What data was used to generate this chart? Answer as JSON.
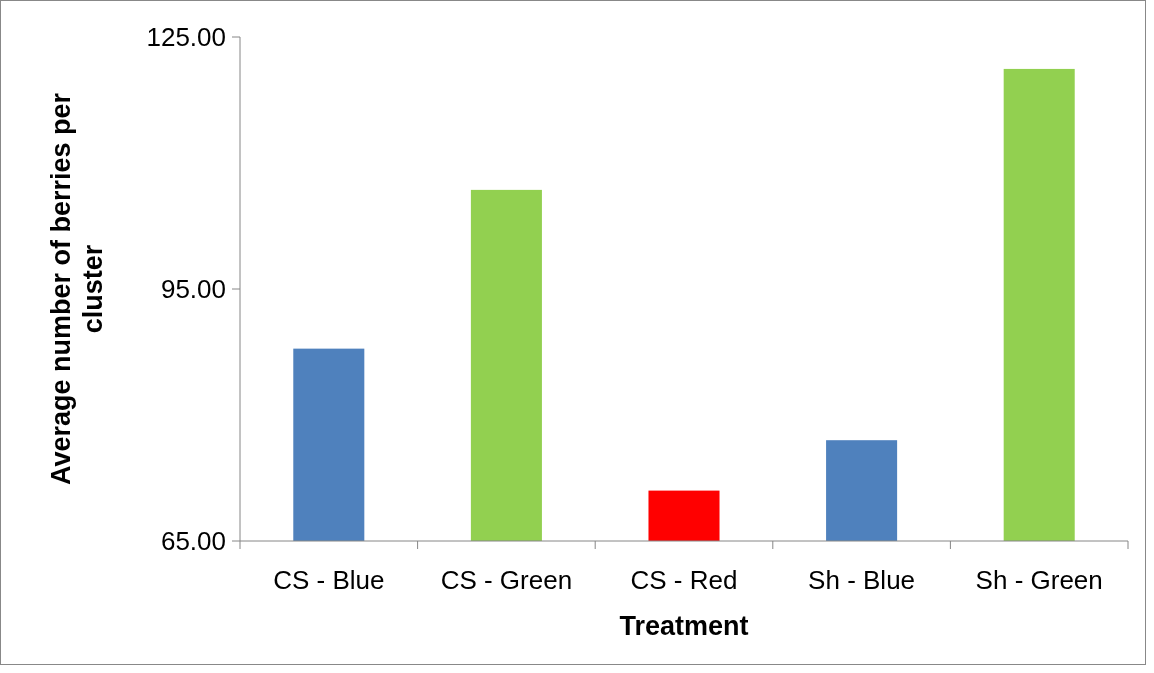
{
  "chart_data": {
    "type": "bar",
    "xlabel": "Treatment",
    "ylabel": "Average number of berries per cluster",
    "categories": [
      "CS - Blue",
      "CS - Green",
      "CS - Red",
      "Sh - Blue",
      "Sh - Green"
    ],
    "values": [
      87.9,
      106.8,
      71.0,
      77.0,
      121.2
    ],
    "colors": [
      "#4f81bd",
      "#92d050",
      "#ff0000",
      "#4f81bd",
      "#92d050"
    ],
    "ylim": [
      65,
      125
    ],
    "yticks": [
      {
        "value": 65,
        "label": "65.00"
      },
      {
        "value": 95,
        "label": "95.00"
      },
      {
        "value": 125,
        "label": "125.00"
      }
    ],
    "grid": false
  }
}
